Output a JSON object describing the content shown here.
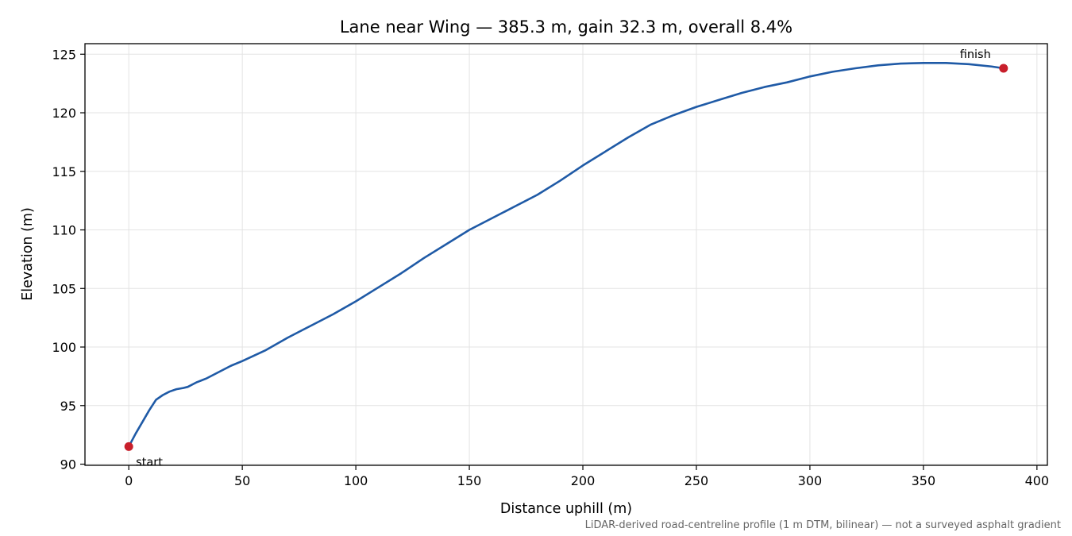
{
  "chart_data": {
    "type": "line",
    "title": "Lane near Wing — 385.3 m, gain 32.3 m, overall 8.4%",
    "xlabel": "Distance uphill (m)",
    "ylabel": "Elevation (m)",
    "xlim": [
      -19.3,
      404.6
    ],
    "ylim": [
      89.9,
      125.9
    ],
    "xticks": [
      0,
      50,
      100,
      150,
      200,
      250,
      300,
      350,
      400
    ],
    "yticks": [
      90,
      95,
      100,
      105,
      110,
      115,
      120,
      125
    ],
    "grid": true,
    "line_color": "#1f5aa6",
    "marker_color": "#c81f2b",
    "series": [
      {
        "x": [
          0,
          3,
          6,
          9,
          12,
          15,
          18,
          21,
          24,
          26,
          30,
          34,
          40,
          45,
          50,
          60,
          70,
          80,
          90,
          100,
          110,
          120,
          130,
          140,
          150,
          160,
          170,
          180,
          190,
          200,
          210,
          220,
          230,
          240,
          250,
          260,
          270,
          280,
          290,
          300,
          310,
          320,
          330,
          340,
          350,
          360,
          370,
          380,
          385.3
        ],
        "y": [
          91.5,
          92.6,
          93.6,
          94.6,
          95.5,
          95.9,
          96.2,
          96.4,
          96.5,
          96.6,
          97.0,
          97.3,
          97.9,
          98.4,
          98.8,
          99.7,
          100.8,
          101.8,
          102.8,
          103.9,
          105.1,
          106.3,
          107.6,
          108.8,
          110.0,
          111.0,
          112.0,
          113.0,
          114.2,
          115.5,
          116.7,
          117.9,
          119.0,
          119.8,
          120.5,
          121.1,
          121.7,
          122.2,
          122.6,
          123.1,
          123.5,
          123.8,
          124.05,
          124.2,
          124.25,
          124.25,
          124.15,
          123.95,
          123.8
        ]
      }
    ],
    "annotations": [
      {
        "label": "start",
        "x": 0,
        "y": 91.5
      },
      {
        "label": "finish",
        "x": 385.3,
        "y": 123.8
      }
    ],
    "footnote": "LiDAR-derived road-centreline profile (1 m DTM, bilinear) — not a surveyed asphalt gradient"
  }
}
